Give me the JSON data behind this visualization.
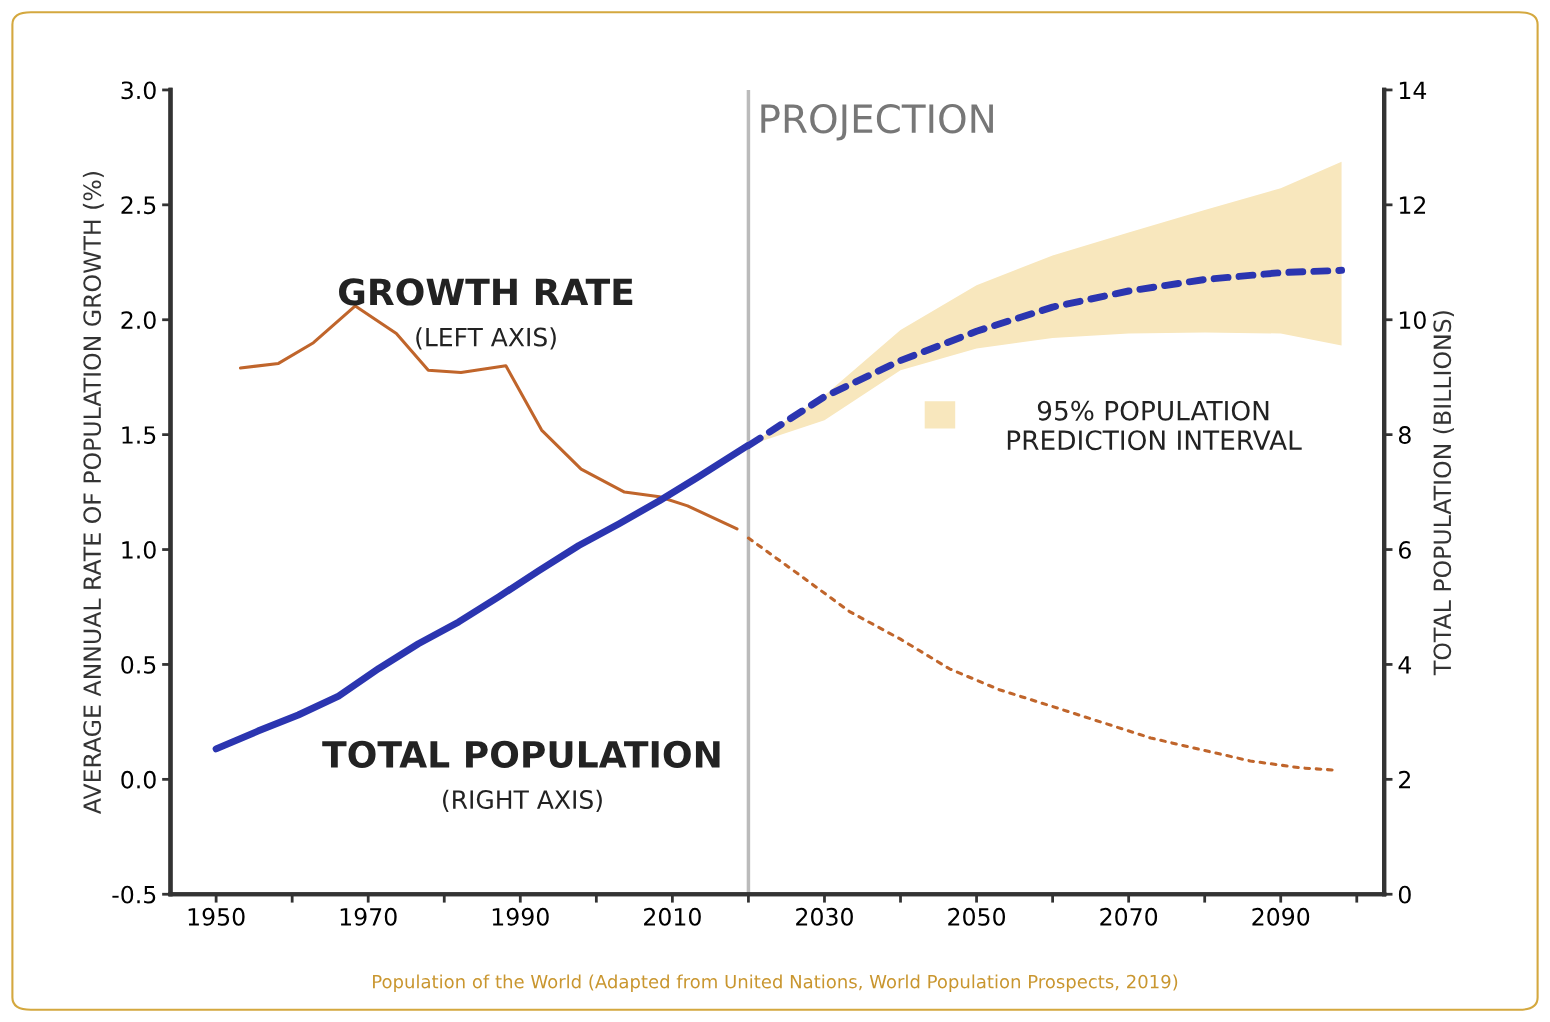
{
  "chart_data": {
    "type": "line",
    "ylabel": "AVERAGE ANNUAL RATE OF POPULATION GROWTH (%)",
    "y2label": "TOTAL POPULATION (BILLIONS)",
    "xlim": [
      1944,
      2103.6
    ],
    "xticks": [
      1950,
      {
        "value": 1960,
        "label": null
      },
      1970,
      {
        "value": 1980,
        "label": null
      },
      1990,
      {
        "value": 2000,
        "label": null
      },
      2010,
      {
        "value": 2020,
        "label": null
      },
      2030,
      {
        "value": 2040,
        "label": null
      },
      2050,
      {
        "value": 2060,
        "label": null
      },
      2070,
      {
        "value": 2080,
        "label": null
      },
      2090,
      {
        "value": 2100,
        "label": null
      }
    ],
    "ylim": [
      -0.5,
      3.0
    ],
    "yticks": [
      {
        "value": -0.5,
        "label": "-0.5"
      },
      {
        "value": 0,
        "label": "0.0"
      },
      {
        "value": 0.5,
        "label": "0.5"
      },
      {
        "value": 1.0,
        "label": "1.0"
      },
      {
        "value": 1.5,
        "label": "1.5"
      },
      {
        "value": 2.0,
        "label": "2.0"
      },
      {
        "value": 2.5,
        "label": "2.5"
      },
      {
        "value": 3.0,
        "label": "3.0"
      }
    ],
    "y2lim": [
      0,
      14
    ],
    "y2ticks": [
      0,
      2,
      4,
      6,
      8,
      10,
      12,
      14
    ],
    "grid": false,
    "series": [
      {
        "color": "#c0652b",
        "line_style": "solid",
        "x": [
          1953.2,
          1958.2,
          1962.8,
          1968.3,
          1973.7,
          1977.9,
          1982.2,
          1988.1,
          1992.8,
          1998,
          2003.7,
          2008.3,
          2012,
          2018.5
        ],
        "values": [
          1.79,
          1.81,
          1.9,
          2.06,
          1.94,
          1.78,
          1.77,
          1.8,
          1.52,
          1.35,
          1.25,
          1.23,
          1.19,
          1.09
        ]
      },
      {
        "color": "#c0652b",
        "line_style": "dotted",
        "x": [
          2020,
          2026.7,
          2033.3,
          2040,
          2046.5,
          2053,
          2059.7,
          2066.3,
          2072.9,
          2079.4,
          2086,
          2092.6,
          2097.2
        ],
        "values": [
          1.05,
          0.89,
          0.73,
          0.61,
          0.48,
          0.39,
          0.32,
          0.25,
          0.18,
          0.13,
          0.08,
          0.05,
          0.04
        ]
      },
      {
        "color": "#2b35b0",
        "line_style": "solid",
        "axis": "y2",
        "x": [
          1950,
          1955.5,
          1960.8,
          1966.1,
          1971.4,
          1976.6,
          1981.9,
          1987.2,
          1992.4,
          1997.7,
          2003,
          2008.3,
          2013.5,
          2019.9
        ],
        "values": [
          2.53,
          2.84,
          3.12,
          3.45,
          3.93,
          4.36,
          4.74,
          5.18,
          5.63,
          6.07,
          6.45,
          6.85,
          7.27,
          7.81
        ]
      },
      {
        "color": "#2b35b0",
        "line_style": "dashed",
        "axis": "y2",
        "x": [
          2020,
          2030,
          2040,
          2050,
          2060,
          2070,
          2080,
          2090,
          2098
        ],
        "values": [
          7.81,
          8.66,
          9.29,
          9.8,
          10.22,
          10.5,
          10.7,
          10.82,
          10.86
        ],
        "lower": [
          7.81,
          8.25,
          9.12,
          9.5,
          9.68,
          9.76,
          9.78,
          9.76,
          9.55
        ],
        "upper": [
          7.81,
          8.68,
          9.82,
          10.6,
          11.12,
          11.52,
          11.91,
          12.29,
          12.75
        ]
      }
    ],
    "ref_lines": [
      {
        "axis": "x",
        "value": 2020,
        "label": "PROJECTION",
        "color": "#bbbbbb"
      }
    ],
    "annotations": [
      "GROWTH RATE",
      "(LEFT AXIS)",
      "TOTAL POPULATION",
      "(RIGHT AXIS)",
      "95% POPULATION\nPREDICTION INTERVAL",
      "Population of the World (Adapted from United Nations, World Population Prospects, 2019)"
    ]
  }
}
